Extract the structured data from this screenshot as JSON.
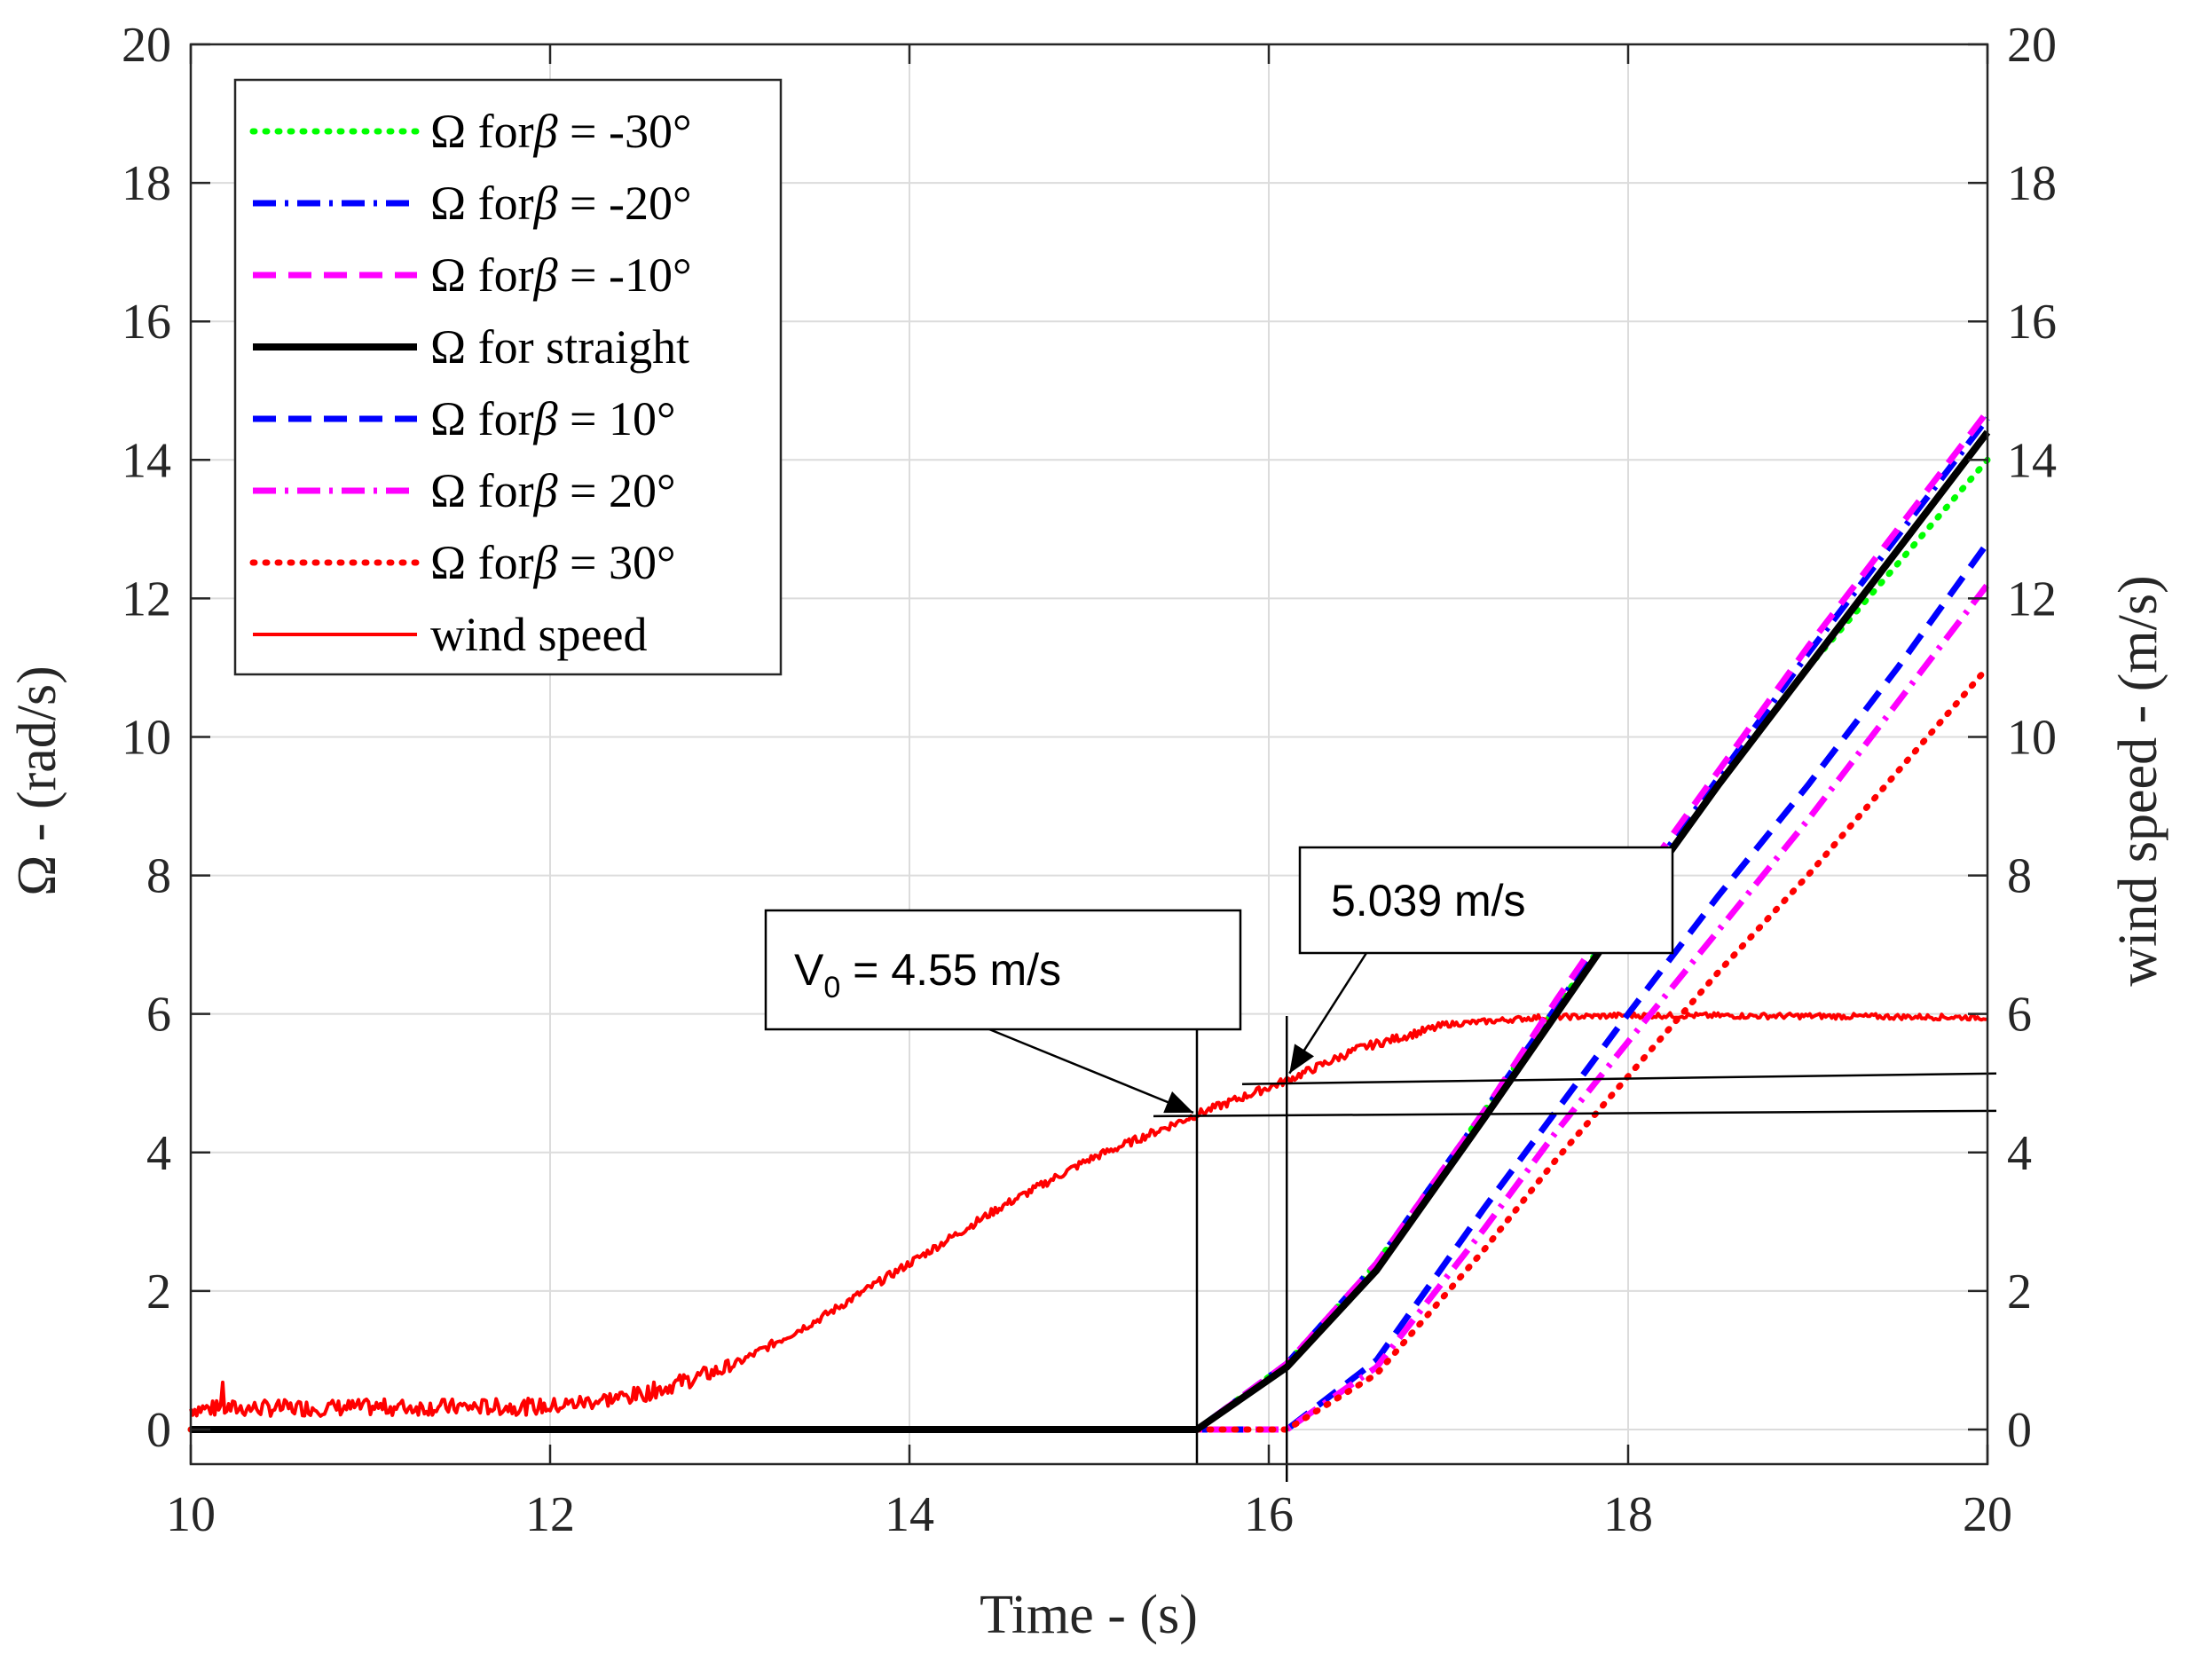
{
  "chart_data": {
    "type": "line",
    "xlabel": "Time - (s)",
    "ylabel": "Ω - (rad/s)",
    "ylabel_right": "wind speed - (m/s)",
    "xlim": [
      10,
      20
    ],
    "ylim": [
      -0.5,
      20
    ],
    "ylim_right": [
      -0.5,
      20
    ],
    "grid": true,
    "legend_location": "top-left",
    "x_ticks": [
      10,
      12,
      14,
      16,
      18,
      20
    ],
    "y_ticks": [
      0,
      2,
      4,
      6,
      8,
      10,
      12,
      14,
      16,
      18,
      20
    ],
    "y_ticks_right": [
      0,
      2,
      4,
      6,
      8,
      10,
      12,
      14,
      16,
      18,
      20
    ],
    "series": [
      {
        "name": "Ω for β = -30°",
        "label_prefix": "Ω for",
        "label_symbol": "β",
        "label_suffix": " = -30°",
        "color": "#00ff00",
        "dash": "2 12",
        "width": 7,
        "points": [
          [
            10,
            0
          ],
          [
            15.6,
            0
          ],
          [
            16.1,
            0.95
          ],
          [
            16.6,
            2.4
          ],
          [
            17.2,
            4.6
          ],
          [
            17.6,
            6.1
          ],
          [
            18.0,
            7.5
          ],
          [
            18.5,
            9.3
          ],
          [
            19.0,
            11.0
          ],
          [
            19.5,
            12.5
          ],
          [
            20,
            14.0
          ]
        ]
      },
      {
        "name": "Ω for β = -20°",
        "label_prefix": "Ω for",
        "label_symbol": "β",
        "label_suffix": " = -20°",
        "color": "#0000ff",
        "dash": "26 10 4 10",
        "width": 7,
        "points": [
          [
            10,
            0
          ],
          [
            15.6,
            0
          ],
          [
            16.1,
            0.95
          ],
          [
            16.6,
            2.4
          ],
          [
            17.2,
            4.6
          ],
          [
            17.6,
            6.1
          ],
          [
            18.0,
            7.6
          ],
          [
            18.5,
            9.4
          ],
          [
            19.0,
            11.2
          ],
          [
            19.5,
            12.9
          ],
          [
            20,
            14.6
          ]
        ]
      },
      {
        "name": "Ω for β = -10°",
        "label_prefix": "Ω for",
        "label_symbol": "β",
        "label_suffix": " = -10°",
        "color": "#ff00ff",
        "dash": "26 14",
        "width": 7,
        "points": [
          [
            10,
            0
          ],
          [
            15.6,
            0
          ],
          [
            16.1,
            0.95
          ],
          [
            16.6,
            2.4
          ],
          [
            17.2,
            4.6
          ],
          [
            17.6,
            6.2
          ],
          [
            18.0,
            7.7
          ],
          [
            18.5,
            9.5
          ],
          [
            19.0,
            11.3
          ],
          [
            19.5,
            13.0
          ],
          [
            20,
            14.7
          ]
        ]
      },
      {
        "name": "Ω for straight",
        "label_prefix": "Ω for straight",
        "label_symbol": "",
        "label_suffix": "",
        "color": "#000000",
        "dash": "",
        "width": 8,
        "points": [
          [
            10,
            0
          ],
          [
            15.6,
            0
          ],
          [
            16.1,
            0.9
          ],
          [
            16.6,
            2.3
          ],
          [
            17.2,
            4.5
          ],
          [
            17.6,
            6.0
          ],
          [
            18.0,
            7.5
          ],
          [
            18.5,
            9.3
          ],
          [
            19.0,
            11.0
          ],
          [
            19.5,
            12.7
          ],
          [
            20,
            14.4
          ]
        ]
      },
      {
        "name": "Ω for β = 10°",
        "label_prefix": "Ω for",
        "label_symbol": "β",
        "label_suffix": " = 10°",
        "color": "#0000ff",
        "dash": "26 14",
        "width": 7,
        "points": [
          [
            10,
            0
          ],
          [
            16.1,
            0
          ],
          [
            16.6,
            1.0
          ],
          [
            17.2,
            3.2
          ],
          [
            17.6,
            4.6
          ],
          [
            18.0,
            6.0
          ],
          [
            18.5,
            7.7
          ],
          [
            19.0,
            9.3
          ],
          [
            19.5,
            11.0
          ],
          [
            20,
            12.8
          ]
        ]
      },
      {
        "name": "Ω for β = 20°",
        "label_prefix": "Ω for",
        "label_symbol": "β",
        "label_suffix": " = 20°",
        "color": "#ff00ff",
        "dash": "26 10 4 10",
        "width": 7,
        "points": [
          [
            10,
            0
          ],
          [
            16.1,
            0
          ],
          [
            16.6,
            0.9
          ],
          [
            17.2,
            2.9
          ],
          [
            17.6,
            4.3
          ],
          [
            18.0,
            5.6
          ],
          [
            18.5,
            7.2
          ],
          [
            19.0,
            8.8
          ],
          [
            19.5,
            10.5
          ],
          [
            20,
            12.2
          ]
        ]
      },
      {
        "name": "Ω for β = 30°",
        "label_prefix": "Ω for",
        "label_symbol": "β",
        "label_suffix": " = 30°",
        "color": "#ff0000",
        "dash": "2 12",
        "width": 7,
        "points": [
          [
            10,
            0
          ],
          [
            16.1,
            0
          ],
          [
            16.6,
            0.8
          ],
          [
            17.2,
            2.6
          ],
          [
            17.6,
            3.9
          ],
          [
            18.0,
            5.1
          ],
          [
            18.5,
            6.6
          ],
          [
            19.0,
            8.0
          ],
          [
            19.5,
            9.5
          ],
          [
            20,
            11.0
          ]
        ]
      },
      {
        "name": "wind speed",
        "label_prefix": "wind speed",
        "label_symbol": "",
        "label_suffix": "",
        "color": "#ff0000",
        "dash": "",
        "width": 4,
        "noisy": true,
        "points": [
          [
            10,
            0.3
          ],
          [
            11,
            0.32
          ],
          [
            12,
            0.33
          ],
          [
            12.5,
            0.5
          ],
          [
            13,
            0.9
          ],
          [
            13.5,
            1.6
          ],
          [
            14,
            2.4
          ],
          [
            14.5,
            3.2
          ],
          [
            15,
            3.9
          ],
          [
            15.6,
            4.55
          ],
          [
            16.1,
            5.039
          ],
          [
            16.5,
            5.5
          ],
          [
            17,
            5.85
          ],
          [
            17.5,
            5.95
          ],
          [
            18,
            5.98
          ],
          [
            19,
            5.97
          ],
          [
            20,
            5.95
          ]
        ]
      }
    ],
    "annotations": [
      {
        "text_main": "V",
        "text_sub": "0",
        "text_rest": " = 4.55 m/s",
        "point": [
          15.6,
          4.55
        ]
      },
      {
        "text_main": "5.039 m/s",
        "text_sub": "",
        "text_rest": "",
        "point": [
          16.1,
          5.039
        ]
      }
    ]
  }
}
